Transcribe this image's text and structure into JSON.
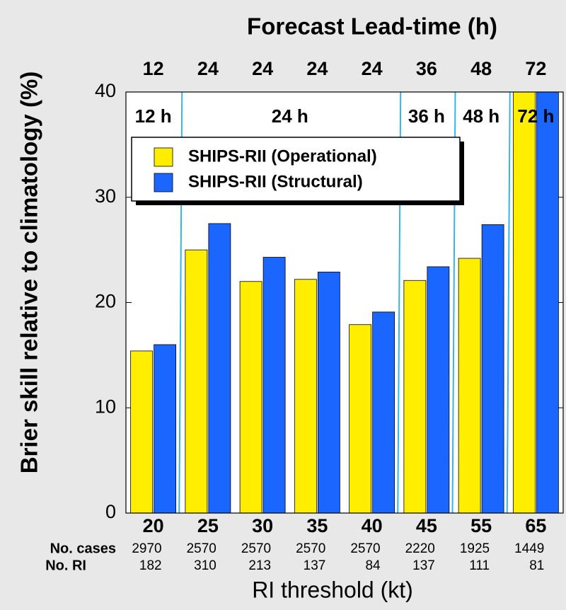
{
  "chart_data": {
    "type": "bar",
    "title": "Forecast Lead-time (h)",
    "xlabel": "RI threshold (kt)",
    "ylabel": "Brier skill relative to climatology (%)",
    "categories": [
      "20",
      "25",
      "30",
      "35",
      "40",
      "45",
      "55",
      "65"
    ],
    "lead_times": [
      "12",
      "24",
      "24",
      "24",
      "24",
      "36",
      "48",
      "72"
    ],
    "lead_time_annotations": [
      "12 h",
      "24 h",
      "36 h",
      "48 h",
      "72 h"
    ],
    "series": [
      {
        "name": "SHIPS-RII (Operational)",
        "color": "#ffee00",
        "values": [
          15.4,
          25.0,
          22.0,
          22.2,
          17.9,
          22.1,
          24.2,
          40
        ]
      },
      {
        "name": "SHIPS-RII (Structural)",
        "color": "#1a66ff",
        "values": [
          16.0,
          27.5,
          24.3,
          22.9,
          19.1,
          23.4,
          27.4,
          40
        ]
      }
    ],
    "ylim": [
      0,
      40
    ],
    "yticks": [
      0,
      10,
      20,
      30,
      40
    ],
    "table_rows": [
      {
        "label": "No. cases",
        "values": [
          2970,
          2570,
          2570,
          2570,
          2570,
          2220,
          1925,
          1449
        ]
      },
      {
        "label": "No. RI",
        "values": [
          182,
          310,
          213,
          137,
          84,
          137,
          111,
          81
        ]
      }
    ]
  }
}
